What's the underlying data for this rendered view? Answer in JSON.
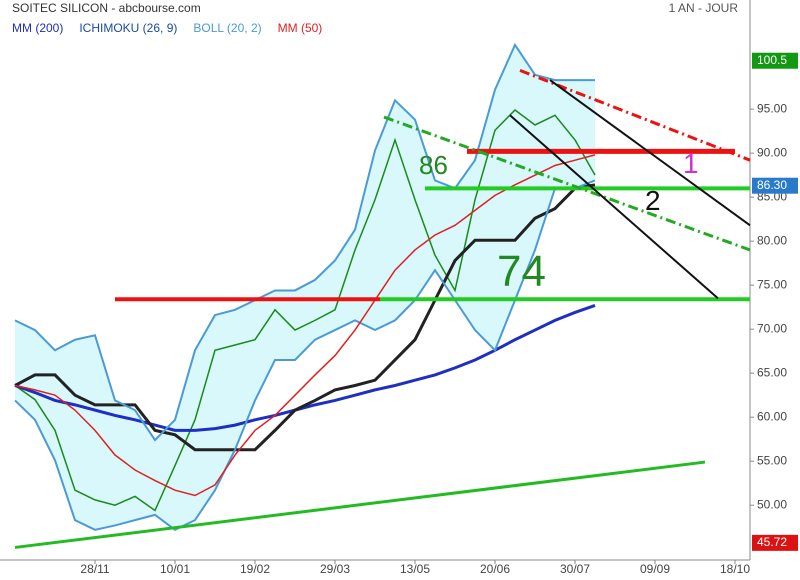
{
  "chart_data": {
    "type": "line",
    "title": "SOITEC SILICON - abcbourse.com",
    "period": "1 AN - JOUR",
    "categories": [
      null,
      null,
      null,
      null,
      "28/11",
      null,
      null,
      null,
      "10/01",
      null,
      null,
      null,
      "19/02",
      null,
      null,
      null,
      "29/03",
      null,
      null,
      null,
      "13/05",
      null,
      null,
      null,
      "20/06",
      null,
      null,
      null,
      "30/07",
      null,
      null,
      null,
      "09/09",
      null,
      null,
      null,
      "18/10",
      null
    ],
    "ylim": [
      41.5,
      107.4
    ],
    "yticks": [
      {
        "value": 50,
        "label": "50.00"
      },
      {
        "value": 55,
        "label": "55.00"
      },
      {
        "value": 60,
        "label": "60.00"
      },
      {
        "value": 65,
        "label": "65.00"
      },
      {
        "value": 70,
        "label": "70.00"
      },
      {
        "value": 75,
        "label": "75.00"
      },
      {
        "value": 80,
        "label": "80.00"
      },
      {
        "value": 85,
        "label": "85.00"
      },
      {
        "value": 90,
        "label": "90.00"
      },
      {
        "value": 95,
        "label": "95.00"
      }
    ],
    "price": {
      "color": "#1a8a1a",
      "values": [
        63.6,
        62,
        58.5,
        51.7,
        50.6,
        50,
        51,
        49.4,
        54.5,
        59.7,
        67.6,
        68.2,
        68.8,
        72.2,
        69.9,
        71,
        72.2,
        79,
        84.7,
        91.5,
        84.7,
        78.4,
        74.4,
        84.7,
        92.6,
        94.9,
        93.2,
        94.3,
        91.5,
        87.5,
        null,
        null,
        null,
        null,
        null,
        null,
        null,
        null
      ]
    },
    "series": [
      {
        "name": "MM (200)",
        "color": "#1f2fc0",
        "width": 3,
        "values": [
          63.6,
          62.8,
          61.9,
          61.4,
          60.8,
          60.2,
          59.7,
          59.1,
          58.5,
          58.5,
          58.7,
          59.1,
          59.7,
          60.2,
          60.8,
          61.4,
          61.9,
          62.5,
          63.1,
          63.6,
          64.2,
          64.8,
          65.6,
          66.5,
          67.6,
          68.8,
          69.9,
          71,
          71.9,
          72.7,
          null,
          null,
          null,
          null,
          null,
          null,
          null,
          null
        ]
      },
      {
        "name": "ICHIMOKU (26, 9)",
        "color": "#222222",
        "width": 3,
        "values": [
          63.6,
          64.8,
          64.8,
          62.5,
          61.4,
          61.4,
          61.4,
          58.5,
          58,
          56.3,
          56.3,
          56.3,
          56.3,
          58.5,
          60.8,
          61.9,
          63.1,
          63.6,
          64.2,
          66.5,
          68.8,
          73.3,
          77.8,
          80.1,
          80.1,
          80.1,
          82.6,
          83.7,
          86,
          86.4,
          null,
          null,
          null,
          null,
          null,
          null,
          null,
          null
        ]
      },
      {
        "name": "BOLL (20, 2)",
        "color": "#4a9ad8",
        "fill": "#d8f8fc",
        "width": 2,
        "upper": [
          71,
          69.9,
          67.6,
          68.8,
          69.3,
          61.9,
          60.8,
          57.4,
          59.7,
          67.6,
          71.6,
          72.2,
          73.3,
          74.4,
          74.4,
          75.6,
          77.8,
          81.3,
          90.3,
          96,
          93.8,
          86.9,
          86,
          89.2,
          97.2,
          102.3,
          98.9,
          98.3,
          98.3,
          98.3,
          null,
          null,
          null,
          null,
          null,
          null,
          null,
          null
        ],
        "lower": [
          61.9,
          59.7,
          55.1,
          48.3,
          47.2,
          47.7,
          48.3,
          48.9,
          47.2,
          48.3,
          51.7,
          56.3,
          61.9,
          66.5,
          66.5,
          68.8,
          69.9,
          71,
          69.9,
          71,
          73.3,
          76.7,
          73.3,
          69.9,
          67.6,
          73.3,
          79,
          86,
          86,
          86.9,
          null,
          null,
          null,
          null,
          null,
          null,
          null,
          null
        ]
      },
      {
        "name": "MM (50)",
        "color": "#e02020",
        "width": 1.5,
        "values": [
          63.6,
          63.1,
          62.5,
          60.8,
          58.5,
          55.7,
          54,
          52.8,
          51.7,
          51.1,
          52.3,
          55.7,
          58.5,
          60.2,
          62.5,
          64.8,
          67,
          69.9,
          73.3,
          76.7,
          79,
          80.7,
          81.8,
          83.5,
          85.2,
          86.4,
          87.5,
          88.6,
          89.2,
          89.8,
          null,
          null,
          null,
          null,
          null,
          null,
          null,
          null
        ]
      }
    ],
    "lines": [
      {
        "x": [
          0,
          34.5
        ],
        "y": [
          45.2,
          54.9
        ],
        "color": "#22bb22",
        "width": 3,
        "dash": ""
      },
      {
        "x": [
          5,
          18.25
        ],
        "y": [
          73.4,
          73.4
        ],
        "color": "#ee1111",
        "width": 4,
        "dash": ""
      },
      {
        "x": [
          18.25,
          36.75
        ],
        "y": [
          73.4,
          73.4
        ],
        "color": "#22cc22",
        "width": 4,
        "dash": ""
      },
      {
        "x": [
          20.5,
          36.75
        ],
        "y": [
          86,
          86
        ],
        "color": "#22cc22",
        "width": 4,
        "dash": ""
      },
      {
        "x": [
          22.6,
          36
        ],
        "y": [
          90.2,
          90.2
        ],
        "color": "#ee1111",
        "width": 5,
        "dash": ""
      },
      {
        "x": [
          18.45,
          36.75
        ],
        "y": [
          94.1,
          79
        ],
        "color": "#22aa22",
        "width": 3,
        "dash": "10 4 2 4"
      },
      {
        "x": [
          25.25,
          36.75
        ],
        "y": [
          99.4,
          89.2
        ],
        "color": "#ee1111",
        "width": 3,
        "dash": "10 4 2 4"
      },
      {
        "x": [
          26.75,
          36.75
        ],
        "y": [
          98.3,
          81.8
        ],
        "color": "#111111",
        "width": 2,
        "dash": ""
      },
      {
        "x": [
          24.75,
          35.15
        ],
        "y": [
          94.3,
          73.5
        ],
        "color": "#111111",
        "width": 2,
        "dash": ""
      }
    ],
    "annotations": [
      {
        "text": "86",
        "x": 20.2,
        "y": 88.4,
        "size": 26,
        "color": "#228822"
      },
      {
        "text": "74",
        "x": 24.1,
        "y": 76.2,
        "size": 44,
        "color": "#228822"
      },
      {
        "text": "1",
        "x": 33.4,
        "y": 88.6,
        "size": 28,
        "color": "#cc33cc"
      },
      {
        "text": "2",
        "x": 31.5,
        "y": 84.4,
        "size": 28,
        "color": "#111111"
      }
    ],
    "tags": [
      {
        "value": 100.5,
        "label": "100.5",
        "color": "#119911"
      },
      {
        "value": 86.3,
        "label": "86.30",
        "color": "#2a7acc"
      },
      {
        "value": 45.72,
        "label": "45.72",
        "color": "#dd1111"
      }
    ]
  }
}
